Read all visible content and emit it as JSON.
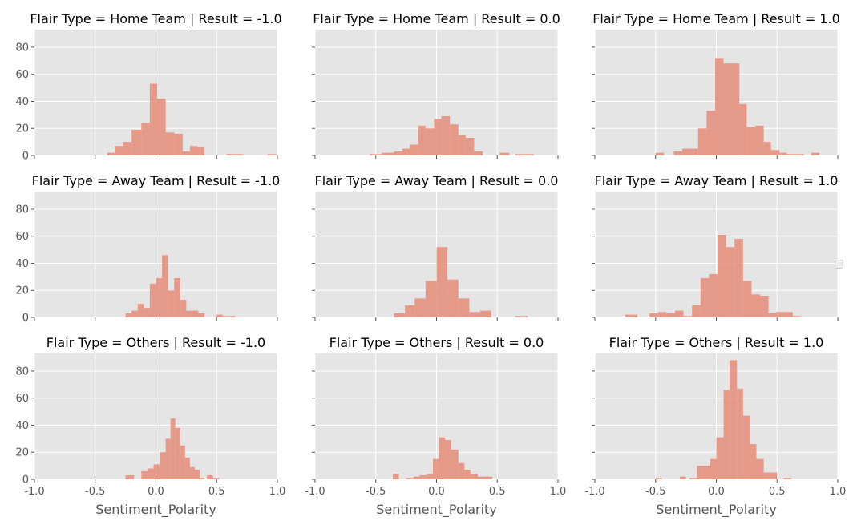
{
  "chart_data": {
    "type": "bar",
    "layout": "3x3 facet grid of histograms",
    "xlabel": "Sentiment_Polarity",
    "xlim": [
      -1.0,
      1.0
    ],
    "ylim": [
      0,
      93
    ],
    "xticks": [
      "-1.0",
      "-0.5",
      "0.0",
      "0.5",
      "1.0"
    ],
    "yticks": [
      "0",
      "20",
      "40",
      "60",
      "80"
    ],
    "grid": true,
    "bar_color": "#e58c79",
    "background_color": "#e5e5e5",
    "panels": [
      {
        "title": "Flair Type = Home Team | Result = -1.0",
        "bins": [
          [
            -0.4,
            -0.34,
            2
          ],
          [
            -0.34,
            -0.27,
            7
          ],
          [
            -0.27,
            -0.2,
            10
          ],
          [
            -0.2,
            -0.12,
            19
          ],
          [
            -0.12,
            -0.05,
            24
          ],
          [
            -0.05,
            0.01,
            53
          ],
          [
            0.01,
            0.08,
            42
          ],
          [
            0.08,
            0.15,
            17
          ],
          [
            0.15,
            0.22,
            16
          ],
          [
            0.22,
            0.28,
            3
          ],
          [
            0.28,
            0.34,
            7
          ],
          [
            0.34,
            0.4,
            6
          ],
          [
            0.58,
            0.72,
            1
          ],
          [
            0.92,
            0.99,
            1
          ]
        ]
      },
      {
        "title": "Flair Type = Home Team | Result = 0.0",
        "bins": [
          [
            -0.55,
            -0.45,
            1
          ],
          [
            -0.45,
            -0.35,
            2
          ],
          [
            -0.35,
            -0.28,
            3
          ],
          [
            -0.28,
            -0.22,
            5
          ],
          [
            -0.22,
            -0.15,
            8
          ],
          [
            -0.15,
            -0.09,
            22
          ],
          [
            -0.09,
            -0.02,
            20
          ],
          [
            -0.02,
            0.04,
            27
          ],
          [
            0.04,
            0.11,
            29
          ],
          [
            0.11,
            0.18,
            23
          ],
          [
            0.18,
            0.24,
            15
          ],
          [
            0.24,
            0.31,
            13
          ],
          [
            0.31,
            0.38,
            3
          ],
          [
            0.52,
            0.6,
            2
          ],
          [
            0.65,
            0.8,
            1
          ]
        ]
      },
      {
        "title": "Flair Type = Home Team | Result = 1.0",
        "bins": [
          [
            -0.5,
            -0.43,
            2
          ],
          [
            -0.35,
            -0.28,
            3
          ],
          [
            -0.28,
            -0.15,
            5
          ],
          [
            -0.15,
            -0.08,
            20
          ],
          [
            -0.08,
            -0.01,
            33
          ],
          [
            -0.01,
            0.06,
            72
          ],
          [
            0.06,
            0.19,
            68
          ],
          [
            0.19,
            0.25,
            38
          ],
          [
            0.25,
            0.32,
            21
          ],
          [
            0.32,
            0.39,
            22
          ],
          [
            0.39,
            0.45,
            10
          ],
          [
            0.45,
            0.52,
            4
          ],
          [
            0.52,
            0.58,
            2
          ],
          [
            0.58,
            0.72,
            1
          ],
          [
            0.78,
            0.85,
            2
          ]
        ]
      },
      {
        "title": "Flair Type = Away Team | Result = -1.0",
        "bins": [
          [
            -0.25,
            -0.2,
            3
          ],
          [
            -0.2,
            -0.15,
            5
          ],
          [
            -0.15,
            -0.1,
            10
          ],
          [
            -0.1,
            -0.05,
            7
          ],
          [
            -0.05,
            0.0,
            25
          ],
          [
            0.0,
            0.05,
            29
          ],
          [
            0.05,
            0.1,
            46
          ],
          [
            0.1,
            0.15,
            20
          ],
          [
            0.15,
            0.2,
            29
          ],
          [
            0.2,
            0.25,
            13
          ],
          [
            0.25,
            0.3,
            5
          ],
          [
            0.3,
            0.35,
            5
          ],
          [
            0.35,
            0.4,
            3
          ],
          [
            0.5,
            0.55,
            2
          ],
          [
            0.55,
            0.65,
            1
          ]
        ]
      },
      {
        "title": "Flair Type = Away Team | Result = 0.0",
        "bins": [
          [
            -0.35,
            -0.26,
            3
          ],
          [
            -0.26,
            -0.18,
            9
          ],
          [
            -0.18,
            -0.09,
            14
          ],
          [
            -0.09,
            0.0,
            27
          ],
          [
            0.0,
            0.09,
            52
          ],
          [
            0.09,
            0.18,
            28
          ],
          [
            0.18,
            0.27,
            14
          ],
          [
            0.27,
            0.36,
            4
          ],
          [
            0.36,
            0.45,
            5
          ],
          [
            0.65,
            0.75,
            1
          ]
        ]
      },
      {
        "title": "Flair Type = Away Team | Result = 1.0",
        "bins": [
          [
            -0.75,
            -0.65,
            2
          ],
          [
            -0.55,
            -0.48,
            3
          ],
          [
            -0.48,
            -0.41,
            4
          ],
          [
            -0.41,
            -0.34,
            3
          ],
          [
            -0.34,
            -0.27,
            5
          ],
          [
            -0.27,
            -0.2,
            1
          ],
          [
            -0.2,
            -0.13,
            9
          ],
          [
            -0.13,
            -0.06,
            29
          ],
          [
            -0.06,
            0.01,
            32
          ],
          [
            0.01,
            0.08,
            61
          ],
          [
            0.08,
            0.15,
            52
          ],
          [
            0.15,
            0.22,
            58
          ],
          [
            0.22,
            0.29,
            27
          ],
          [
            0.29,
            0.36,
            17
          ],
          [
            0.36,
            0.43,
            16
          ],
          [
            0.43,
            0.49,
            3
          ],
          [
            0.49,
            0.56,
            4
          ],
          [
            0.56,
            0.63,
            4
          ],
          [
            0.63,
            0.7,
            1
          ]
        ]
      },
      {
        "title": "Flair Type = Others | Result = -1.0",
        "bins": [
          [
            -0.25,
            -0.18,
            3
          ],
          [
            -0.12,
            -0.07,
            6
          ],
          [
            -0.07,
            -0.02,
            8
          ],
          [
            -0.02,
            0.03,
            11
          ],
          [
            0.03,
            0.08,
            20
          ],
          [
            0.08,
            0.12,
            30
          ],
          [
            0.12,
            0.16,
            45
          ],
          [
            0.16,
            0.2,
            38
          ],
          [
            0.2,
            0.24,
            25
          ],
          [
            0.24,
            0.28,
            16
          ],
          [
            0.28,
            0.32,
            9
          ],
          [
            0.32,
            0.36,
            7
          ],
          [
            0.36,
            0.4,
            1
          ],
          [
            0.42,
            0.47,
            3
          ],
          [
            0.47,
            0.52,
            1
          ]
        ]
      },
      {
        "title": "Flair Type = Others | Result = 0.0",
        "bins": [
          [
            -0.36,
            -0.31,
            4
          ],
          [
            -0.25,
            -0.19,
            1
          ],
          [
            -0.19,
            -0.14,
            2
          ],
          [
            -0.14,
            -0.08,
            3
          ],
          [
            -0.08,
            -0.03,
            4
          ],
          [
            -0.03,
            0.02,
            15
          ],
          [
            0.02,
            0.07,
            31
          ],
          [
            0.07,
            0.12,
            29
          ],
          [
            0.12,
            0.18,
            22
          ],
          [
            0.18,
            0.23,
            12
          ],
          [
            0.23,
            0.28,
            7
          ],
          [
            0.28,
            0.34,
            4
          ],
          [
            0.34,
            0.4,
            2
          ],
          [
            0.4,
            0.46,
            2
          ]
        ]
      },
      {
        "title": "Flair Type = Others | Result = 1.0",
        "bins": [
          [
            -0.5,
            -0.45,
            1
          ],
          [
            -0.3,
            -0.25,
            2
          ],
          [
            -0.22,
            -0.16,
            1
          ],
          [
            -0.16,
            -0.11,
            10
          ],
          [
            -0.11,
            -0.05,
            10
          ],
          [
            -0.05,
            0.0,
            15
          ],
          [
            0.0,
            0.06,
            31
          ],
          [
            0.06,
            0.11,
            66
          ],
          [
            0.11,
            0.17,
            88
          ],
          [
            0.17,
            0.22,
            67
          ],
          [
            0.22,
            0.28,
            47
          ],
          [
            0.28,
            0.33,
            26
          ],
          [
            0.33,
            0.39,
            15
          ],
          [
            0.39,
            0.45,
            5
          ],
          [
            0.45,
            0.5,
            5
          ],
          [
            0.55,
            0.62,
            1
          ]
        ]
      }
    ]
  }
}
